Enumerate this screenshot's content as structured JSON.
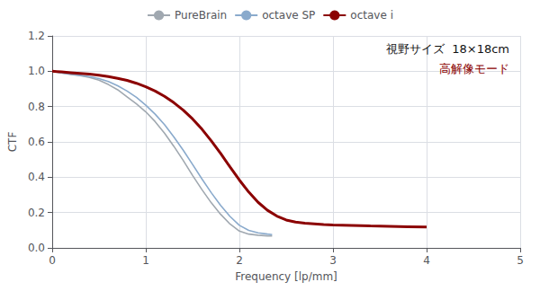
{
  "chart_data": {
    "type": "line",
    "xlabel": "Frequency [lp/mm]",
    "ylabel": "CTF",
    "annotations": [
      {
        "text": "視野サイズ  18×18cm",
        "color": "#111111"
      },
      {
        "text": "高解像モード",
        "color": "#8b0000"
      }
    ],
    "xlim": [
      0,
      5
    ],
    "ylim": [
      0.0,
      1.2
    ],
    "xticks": [
      0,
      1,
      2,
      3,
      4,
      5
    ],
    "yticks": [
      {
        "value": 0.0,
        "label": "0.0"
      },
      0.2,
      0.4,
      0.6,
      0.8,
      {
        "value": 1.0,
        "label": "1.0"
      },
      1.2
    ],
    "grid": true,
    "legend": "top",
    "series": [
      {
        "name": "PureBrain",
        "color": "#a0a8b0",
        "x": [
          0,
          0.05,
          0.1,
          0.2,
          0.3,
          0.4,
          0.5,
          0.6,
          0.7,
          0.8,
          0.9,
          1.0,
          1.1,
          1.2,
          1.3,
          1.4,
          1.5,
          1.6,
          1.7,
          1.8,
          1.9,
          2.0,
          2.1,
          2.2,
          2.3,
          2.35
        ],
        "values": [
          1.0,
          0.995,
          0.99,
          0.982,
          0.975,
          0.965,
          0.95,
          0.925,
          0.895,
          0.855,
          0.815,
          0.77,
          0.715,
          0.65,
          0.575,
          0.495,
          0.41,
          0.33,
          0.255,
          0.19,
          0.135,
          0.095,
          0.078,
          0.072,
          0.068,
          0.067
        ]
      },
      {
        "name": "octave SP",
        "color": "#8aaacc",
        "x": [
          0,
          0.05,
          0.1,
          0.2,
          0.3,
          0.4,
          0.5,
          0.6,
          0.7,
          0.8,
          0.9,
          1.0,
          1.1,
          1.2,
          1.3,
          1.4,
          1.5,
          1.6,
          1.7,
          1.8,
          1.9,
          2.0,
          2.1,
          2.2,
          2.3,
          2.35
        ],
        "values": [
          1.0,
          0.995,
          0.99,
          0.984,
          0.977,
          0.97,
          0.958,
          0.942,
          0.918,
          0.888,
          0.852,
          0.808,
          0.757,
          0.698,
          0.628,
          0.553,
          0.472,
          0.39,
          0.312,
          0.24,
          0.178,
          0.128,
          0.099,
          0.085,
          0.078,
          0.075
        ]
      },
      {
        "name": "octave i",
        "color": "#8b0000",
        "x": [
          0,
          0.05,
          0.1,
          0.2,
          0.3,
          0.4,
          0.5,
          0.6,
          0.7,
          0.8,
          0.9,
          1.0,
          1.1,
          1.2,
          1.3,
          1.4,
          1.5,
          1.6,
          1.7,
          1.8,
          1.9,
          2.0,
          2.1,
          2.2,
          2.3,
          2.4,
          2.5,
          2.6,
          2.7,
          2.8,
          2.9,
          3.0,
          3.2,
          3.4,
          3.6,
          3.8,
          4.0
        ],
        "values": [
          1.0,
          0.998,
          0.996,
          0.992,
          0.988,
          0.984,
          0.978,
          0.97,
          0.96,
          0.948,
          0.932,
          0.912,
          0.888,
          0.858,
          0.822,
          0.78,
          0.73,
          0.672,
          0.606,
          0.534,
          0.458,
          0.384,
          0.316,
          0.258,
          0.213,
          0.18,
          0.158,
          0.146,
          0.14,
          0.136,
          0.132,
          0.13,
          0.127,
          0.124,
          0.122,
          0.12,
          0.118
        ]
      }
    ]
  }
}
